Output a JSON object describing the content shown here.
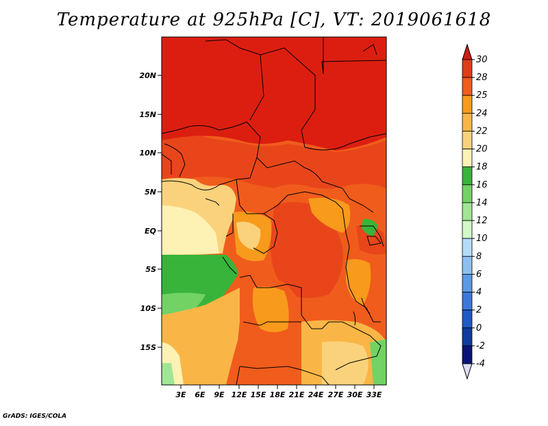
{
  "title": "Temperature at 925hPa [C], VT: 2019061618",
  "credit": "GrADS: IGES/COLA",
  "map": {
    "lat_ticks": [
      "20N",
      "15N",
      "10N",
      "5N",
      "EQ",
      "5S",
      "10S",
      "15S"
    ],
    "lon_ticks": [
      "3E",
      "6E",
      "9E",
      "12E",
      "15E",
      "18E",
      "21E",
      "24E",
      "27E",
      "30E",
      "33E"
    ]
  },
  "colorbar": {
    "labels": [
      "30",
      "28",
      "25",
      "24",
      "22",
      "20",
      "18",
      "16",
      "14",
      "12",
      "10",
      "8",
      "6",
      "4",
      "2",
      "0",
      "-2",
      "-4"
    ],
    "colors": [
      "#c81e14",
      "#e03c18",
      "#f05c1c",
      "#f89a1c",
      "#f9b646",
      "#fbd27c",
      "#fdf2b4",
      "#38b43a",
      "#72d264",
      "#a0e694",
      "#d2f8c8",
      "#b4dcfa",
      "#8cc0f0",
      "#5a9ae6",
      "#3c78dc",
      "#1e5ac8",
      "#0e3ca0",
      "#0a1478"
    ],
    "top_arrow_color": "#c81e14",
    "bottom_arrow_color": "#dcdcf8"
  }
}
